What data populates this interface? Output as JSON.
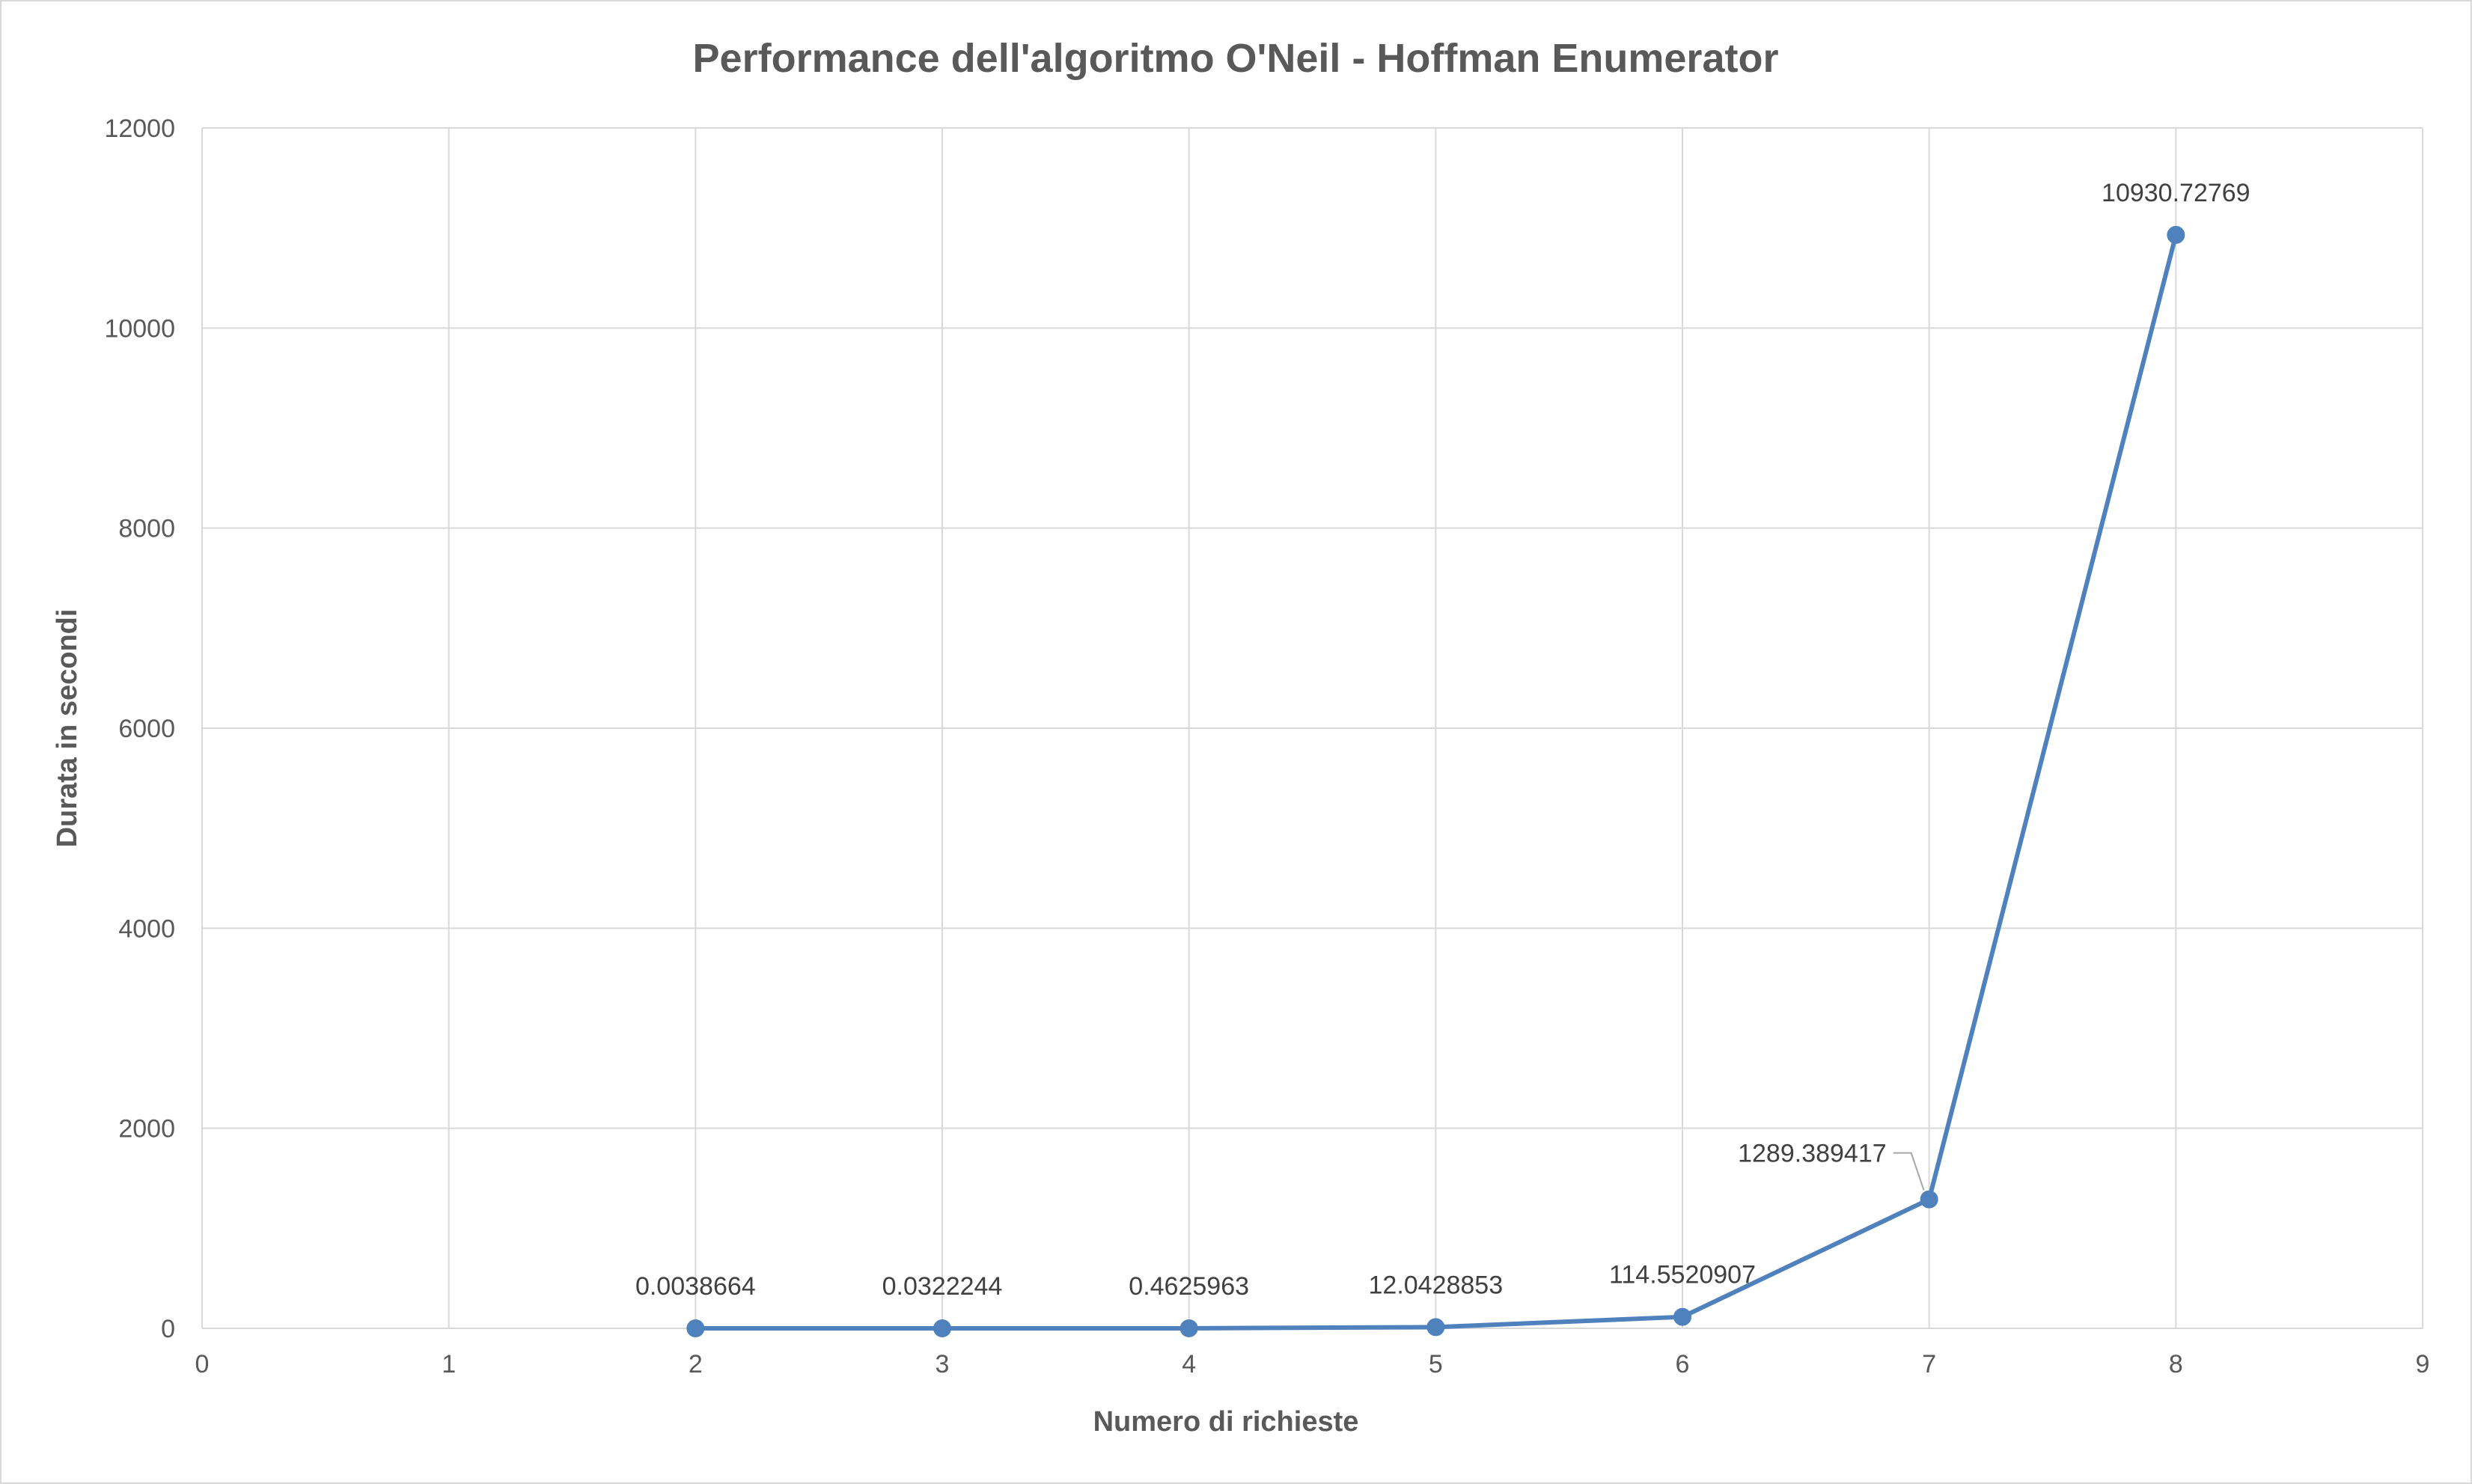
{
  "chart_data": {
    "type": "scatter",
    "title": "Performance dell'algoritmo O'Neil - Hoffman Enumerator",
    "xlabel": "Numero di richieste",
    "ylabel": "Durata in secondi",
    "xlim": [
      0,
      9
    ],
    "ylim": [
      0,
      12000
    ],
    "x_ticks": [
      0,
      1,
      2,
      3,
      4,
      5,
      6,
      7,
      8,
      9
    ],
    "y_ticks": [
      0,
      2000,
      4000,
      6000,
      8000,
      10000,
      12000
    ],
    "grid": true,
    "legend": "none",
    "series": [
      {
        "name": "Durata in secondi",
        "color": "#4f81bd",
        "x": [
          2,
          3,
          4,
          5,
          6,
          7,
          8
        ],
        "values": [
          0.0038664,
          0.0322244,
          0.4625963,
          12.0428853,
          114.5520907,
          1289.389417,
          10930.72769
        ],
        "labels": [
          "0.0038664",
          "0.0322244",
          "0.4625963",
          "12.0428853",
          "114.5520907",
          "1289.389417",
          "10930.72769"
        ]
      }
    ]
  }
}
